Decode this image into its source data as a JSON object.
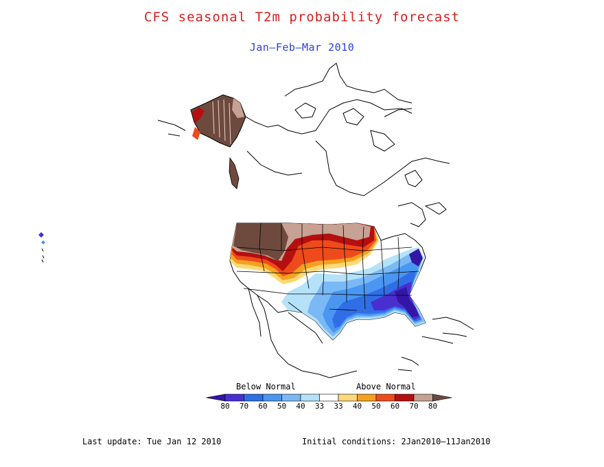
{
  "title": "CFS seasonal T2m probability forecast",
  "subtitle": "Jan—Feb—Mar 2010",
  "legend": {
    "below_label": "Below Normal",
    "above_label": "Above Normal",
    "ticks": [
      "80",
      "70",
      "60",
      "50",
      "40",
      "33",
      "33",
      "40",
      "50",
      "60",
      "70",
      "80"
    ],
    "colors_below": [
      "#3216a6",
      "#4a2fd0",
      "#2f6ee6",
      "#4a96f0",
      "#7ab9f5",
      "#b5e2f8"
    ],
    "colors_above": [
      "#ffd978",
      "#f4a21e",
      "#ef4a1c",
      "#b50f10",
      "#c7a294",
      "#6e4a3e"
    ],
    "neutral": "#ffffff"
  },
  "footer": {
    "last_update": "Last update: Tue Jan 12 2010",
    "initial_conditions": "Initial conditions: 2Jan2010—11Jan2010"
  }
}
